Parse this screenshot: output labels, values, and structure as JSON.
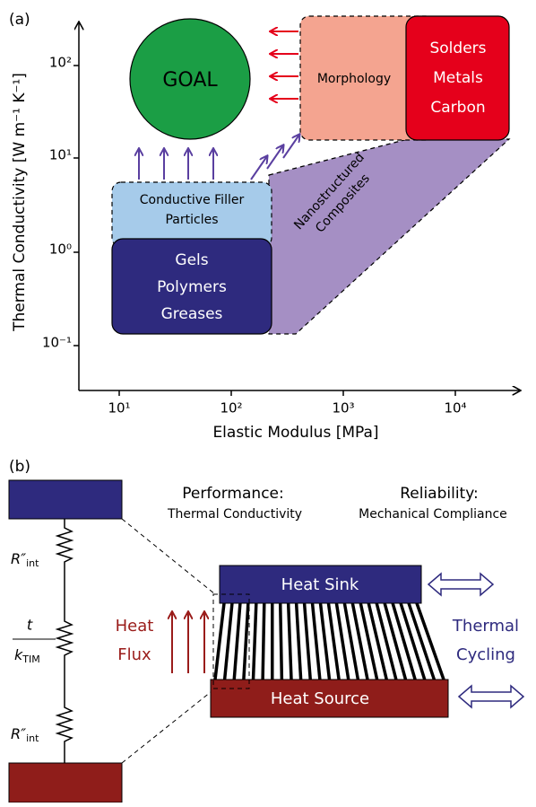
{
  "panel_a": {
    "label": "(a)",
    "y_axis": {
      "title": "Thermal Conductivity [W m⁻¹ K⁻¹]",
      "ticks": [
        "10²",
        "10¹",
        "10⁰",
        "10⁻¹"
      ]
    },
    "x_axis": {
      "title": "Elastic Modulus [MPa]",
      "ticks": [
        "10¹",
        "10²",
        "10³",
        "10⁴"
      ]
    },
    "regions": {
      "goal": [
        "GOAL"
      ],
      "morphology": [
        "Morphology"
      ],
      "metals": [
        "Solders",
        "Metals",
        "Carbon"
      ],
      "filler": [
        "Conductive Filler",
        "Particles"
      ],
      "polymers": [
        "Gels",
        "Polymers",
        "Greases"
      ],
      "nanostructured": [
        "Nanostructured",
        "Composites"
      ]
    }
  },
  "panel_b": {
    "label": "(b)",
    "performance": [
      "Performance:",
      "Thermal Conductivity"
    ],
    "reliability": [
      "Reliability:",
      "Mechanical Compliance"
    ],
    "heat_sink": "Heat Sink",
    "heat_source": "Heat Source",
    "heat_flux": [
      "Heat",
      "Flux"
    ],
    "thermal_cycling": [
      "Thermal",
      "Cycling"
    ],
    "resistors": [
      {
        "symbol": "R″",
        "subscript": "int"
      },
      {
        "numerator": "t",
        "symbol": "k",
        "subscript": "TIM"
      },
      {
        "symbol": "R″",
        "subscript": "int"
      }
    ]
  }
}
